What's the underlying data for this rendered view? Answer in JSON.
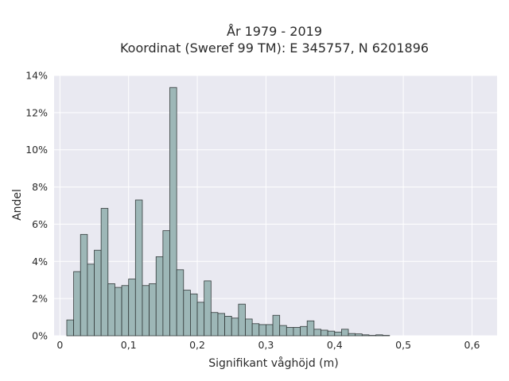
{
  "chart_data": {
    "type": "bar",
    "title_line1": "År 1979 - 2019",
    "title_line2": "Koordinat (Sweref 99 TM): E 345757, N 6201896",
    "xlabel": "Signifikant våghöjd (m)",
    "ylabel": "Andel",
    "xlim": [
      -0.0085,
      0.6365
    ],
    "ylim": [
      0,
      14
    ],
    "x_ticks": [
      0,
      0.1,
      0.2,
      0.3,
      0.4,
      0.5,
      0.6
    ],
    "x_tick_labels": [
      "0",
      "0,1",
      "0,2",
      "0,3",
      "0,4",
      "0,5",
      "0,6"
    ],
    "y_ticks": [
      0,
      2,
      4,
      6,
      8,
      10,
      12,
      14
    ],
    "y_tick_labels": [
      "0%",
      "2%",
      "4%",
      "6%",
      "8%",
      "10%",
      "12%",
      "14%"
    ],
    "bin_start": 0.01,
    "bin_width": 0.01,
    "values": [
      0.85,
      3.45,
      5.45,
      3.85,
      4.6,
      6.85,
      2.8,
      2.6,
      2.7,
      3.05,
      7.3,
      2.7,
      2.8,
      4.25,
      5.65,
      13.35,
      3.55,
      2.45,
      2.25,
      1.8,
      2.95,
      1.25,
      1.2,
      1.05,
      0.95,
      1.7,
      0.9,
      0.65,
      0.6,
      0.6,
      1.1,
      0.55,
      0.45,
      0.45,
      0.5,
      0.8,
      0.35,
      0.3,
      0.25,
      0.2,
      0.35,
      0.12,
      0.1,
      0.05,
      0.02,
      0.05,
      0.02,
      0.0
    ],
    "colors": {
      "bar_fill": "#9db7b7",
      "bar_edge": "#333a3a",
      "plot_bg": "#e9e9f1",
      "grid": "#ffffff"
    },
    "grid": true
  }
}
